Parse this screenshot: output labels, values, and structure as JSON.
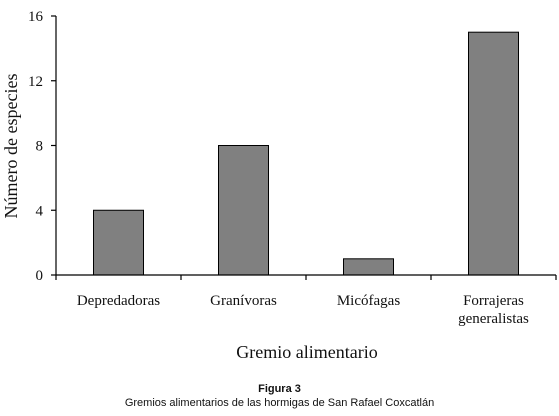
{
  "chart_data": {
    "type": "bar",
    "categories": [
      [
        "Depredadoras"
      ],
      [
        "Granívoras"
      ],
      [
        "Micófagas"
      ],
      [
        "Forrajeras",
        "generalistas"
      ]
    ],
    "values": [
      4,
      8,
      1,
      15
    ],
    "xlabel": "Gremio alimentario",
    "ylabel": "Número de especies",
    "ylim": [
      0,
      16
    ],
    "yticks": [
      0,
      4,
      8,
      12,
      16
    ],
    "grid": false,
    "bar_color": "#808080",
    "bar_stroke": "#000000"
  },
  "figure": {
    "label": "Figura 3",
    "caption": "Gremios alimentarios de las hormigas de San Rafael Coxcatlán"
  }
}
